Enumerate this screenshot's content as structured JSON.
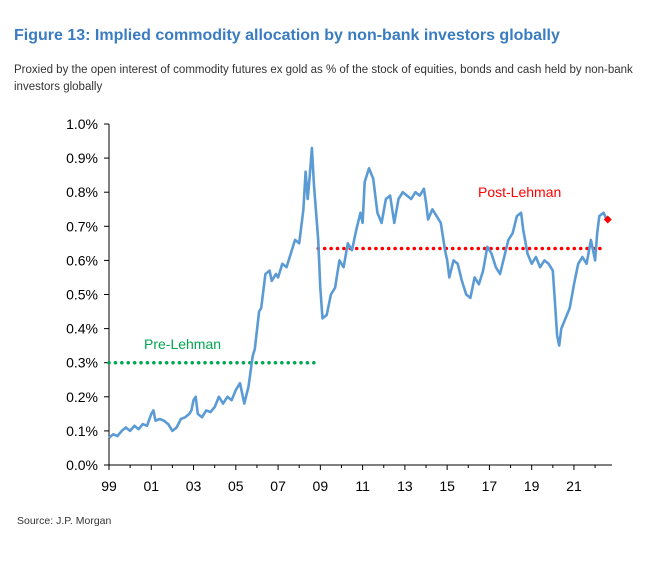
{
  "title": "Figure 13: Implied commodity allocation by non-bank investors globally",
  "subtitle": "Proxied by the open interest of commodity futures ex gold as % of the stock of equities, bonds and cash held by non-bank investors globally",
  "source": "Source: J.P. Morgan",
  "colors": {
    "title": "#3a7cc1",
    "series": "#5b9bd5",
    "pre_lehman": "#00a651",
    "post_lehman": "#ff0000"
  },
  "chart_data": {
    "type": "line",
    "xlim": [
      1999,
      2022.8
    ],
    "ylim": [
      0,
      1.0
    ],
    "x_tick_labels": [
      "99",
      "01",
      "03",
      "05",
      "07",
      "09",
      "11",
      "13",
      "15",
      "17",
      "19",
      "21"
    ],
    "y_tick_labels": [
      "0.0%",
      "0.1%",
      "0.2%",
      "0.3%",
      "0.4%",
      "0.5%",
      "0.6%",
      "0.7%",
      "0.8%",
      "0.9%",
      "1.0%"
    ],
    "series": [
      {
        "points": [
          [
            1999.0,
            0.08
          ],
          [
            1999.2,
            0.09
          ],
          [
            1999.4,
            0.085
          ],
          [
            1999.6,
            0.1
          ],
          [
            1999.8,
            0.11
          ],
          [
            2000.0,
            0.1
          ],
          [
            2000.2,
            0.115
          ],
          [
            2000.4,
            0.105
          ],
          [
            2000.6,
            0.12
          ],
          [
            2000.8,
            0.115
          ],
          [
            2001.0,
            0.15
          ],
          [
            2001.1,
            0.16
          ],
          [
            2001.2,
            0.13
          ],
          [
            2001.4,
            0.135
          ],
          [
            2001.6,
            0.13
          ],
          [
            2001.8,
            0.12
          ],
          [
            2002.0,
            0.1
          ],
          [
            2002.2,
            0.11
          ],
          [
            2002.4,
            0.135
          ],
          [
            2002.6,
            0.14
          ],
          [
            2002.8,
            0.15
          ],
          [
            2002.9,
            0.16
          ],
          [
            2003.0,
            0.19
          ],
          [
            2003.1,
            0.2
          ],
          [
            2003.2,
            0.15
          ],
          [
            2003.4,
            0.14
          ],
          [
            2003.6,
            0.16
          ],
          [
            2003.8,
            0.155
          ],
          [
            2004.0,
            0.17
          ],
          [
            2004.2,
            0.2
          ],
          [
            2004.4,
            0.18
          ],
          [
            2004.6,
            0.2
          ],
          [
            2004.8,
            0.19
          ],
          [
            2005.0,
            0.22
          ],
          [
            2005.2,
            0.24
          ],
          [
            2005.4,
            0.18
          ],
          [
            2005.6,
            0.23
          ],
          [
            2005.8,
            0.32
          ],
          [
            2005.9,
            0.34
          ],
          [
            2006.1,
            0.45
          ],
          [
            2006.2,
            0.46
          ],
          [
            2006.4,
            0.56
          ],
          [
            2006.6,
            0.57
          ],
          [
            2006.7,
            0.54
          ],
          [
            2006.9,
            0.56
          ],
          [
            2007.0,
            0.55
          ],
          [
            2007.2,
            0.59
          ],
          [
            2007.4,
            0.58
          ],
          [
            2007.6,
            0.62
          ],
          [
            2007.8,
            0.66
          ],
          [
            2008.0,
            0.65
          ],
          [
            2008.2,
            0.75
          ],
          [
            2008.3,
            0.86
          ],
          [
            2008.4,
            0.78
          ],
          [
            2008.5,
            0.85
          ],
          [
            2008.6,
            0.93
          ],
          [
            2008.7,
            0.82
          ],
          [
            2008.9,
            0.66
          ],
          [
            2009.0,
            0.52
          ],
          [
            2009.1,
            0.43
          ],
          [
            2009.3,
            0.44
          ],
          [
            2009.5,
            0.5
          ],
          [
            2009.7,
            0.52
          ],
          [
            2009.9,
            0.6
          ],
          [
            2010.1,
            0.58
          ],
          [
            2010.3,
            0.65
          ],
          [
            2010.5,
            0.63
          ],
          [
            2010.7,
            0.69
          ],
          [
            2010.9,
            0.74
          ],
          [
            2011.0,
            0.71
          ],
          [
            2011.1,
            0.83
          ],
          [
            2011.3,
            0.87
          ],
          [
            2011.5,
            0.84
          ],
          [
            2011.7,
            0.74
          ],
          [
            2011.9,
            0.71
          ],
          [
            2012.1,
            0.78
          ],
          [
            2012.3,
            0.79
          ],
          [
            2012.5,
            0.71
          ],
          [
            2012.7,
            0.78
          ],
          [
            2012.9,
            0.8
          ],
          [
            2013.1,
            0.79
          ],
          [
            2013.3,
            0.78
          ],
          [
            2013.5,
            0.8
          ],
          [
            2013.7,
            0.79
          ],
          [
            2013.9,
            0.81
          ],
          [
            2014.0,
            0.77
          ],
          [
            2014.1,
            0.72
          ],
          [
            2014.3,
            0.75
          ],
          [
            2014.5,
            0.73
          ],
          [
            2014.7,
            0.71
          ],
          [
            2014.9,
            0.63
          ],
          [
            2015.0,
            0.6
          ],
          [
            2015.1,
            0.55
          ],
          [
            2015.3,
            0.6
          ],
          [
            2015.5,
            0.59
          ],
          [
            2015.7,
            0.54
          ],
          [
            2015.9,
            0.5
          ],
          [
            2016.1,
            0.49
          ],
          [
            2016.3,
            0.55
          ],
          [
            2016.5,
            0.53
          ],
          [
            2016.7,
            0.57
          ],
          [
            2016.9,
            0.64
          ],
          [
            2017.1,
            0.62
          ],
          [
            2017.3,
            0.58
          ],
          [
            2017.5,
            0.56
          ],
          [
            2017.7,
            0.61
          ],
          [
            2017.9,
            0.66
          ],
          [
            2018.1,
            0.68
          ],
          [
            2018.3,
            0.73
          ],
          [
            2018.5,
            0.74
          ],
          [
            2018.6,
            0.69
          ],
          [
            2018.8,
            0.62
          ],
          [
            2019.0,
            0.59
          ],
          [
            2019.2,
            0.61
          ],
          [
            2019.4,
            0.58
          ],
          [
            2019.6,
            0.6
          ],
          [
            2019.8,
            0.59
          ],
          [
            2020.0,
            0.57
          ],
          [
            2020.1,
            0.48
          ],
          [
            2020.2,
            0.38
          ],
          [
            2020.3,
            0.35
          ],
          [
            2020.4,
            0.4
          ],
          [
            2020.6,
            0.43
          ],
          [
            2020.8,
            0.46
          ],
          [
            2021.0,
            0.53
          ],
          [
            2021.2,
            0.59
          ],
          [
            2021.4,
            0.61
          ],
          [
            2021.6,
            0.59
          ],
          [
            2021.8,
            0.66
          ],
          [
            2022.0,
            0.6
          ],
          [
            2022.1,
            0.68
          ],
          [
            2022.2,
            0.73
          ],
          [
            2022.4,
            0.74
          ],
          [
            2022.55,
            0.72
          ]
        ]
      }
    ],
    "reference_lines": [
      {
        "label": "Pre-Lehman",
        "value": 0.3,
        "x_start": 1999,
        "x_end": 2008.9,
        "color": "#00a651"
      },
      {
        "label": "Post-Lehman",
        "value": 0.635,
        "x_start": 2008.9,
        "x_end": 2022.4,
        "color": "#ff0000"
      }
    ],
    "last_point_marker": {
      "x": 2022.6,
      "y": 0.72,
      "color": "#ff0000"
    }
  }
}
